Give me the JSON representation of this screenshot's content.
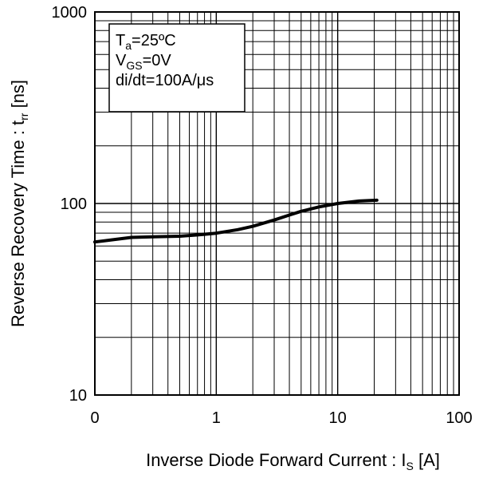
{
  "chart_data": {
    "type": "line",
    "xscale": "log",
    "yscale": "log",
    "xlim": [
      0.1,
      100
    ],
    "ylim": [
      10,
      1000
    ],
    "grid": true,
    "xticks": [
      "0",
      "1",
      "10",
      "100"
    ],
    "yticks": [
      "10",
      "100",
      "1000"
    ],
    "xlabel": {
      "main": "Inverse Diode  Forward Current : I",
      "sub": "S",
      "unit": " [A]"
    },
    "ylabel": {
      "main": "Reverse Recovery Time : t",
      "sub": "rr",
      "unit": " [ns]"
    },
    "legend": {
      "position": "top-left",
      "lines": [
        {
          "main": "T",
          "sub": "a",
          "rest": "=25ºC"
        },
        {
          "main": "V",
          "sub": "GS",
          "rest": "=0V"
        },
        {
          "main": "di/dt=100A/μs",
          "sub": "",
          "rest": ""
        }
      ]
    },
    "series": [
      {
        "x": [
          0.1,
          0.15,
          0.2,
          0.3,
          0.5,
          0.7,
          1,
          1.5,
          2,
          3,
          4,
          5,
          7,
          10,
          15,
          21
        ],
        "y": [
          63,
          65,
          66.5,
          67,
          67.5,
          68.5,
          70,
          73,
          76,
          82,
          87,
          91,
          96,
          100,
          103,
          104
        ]
      }
    ]
  }
}
